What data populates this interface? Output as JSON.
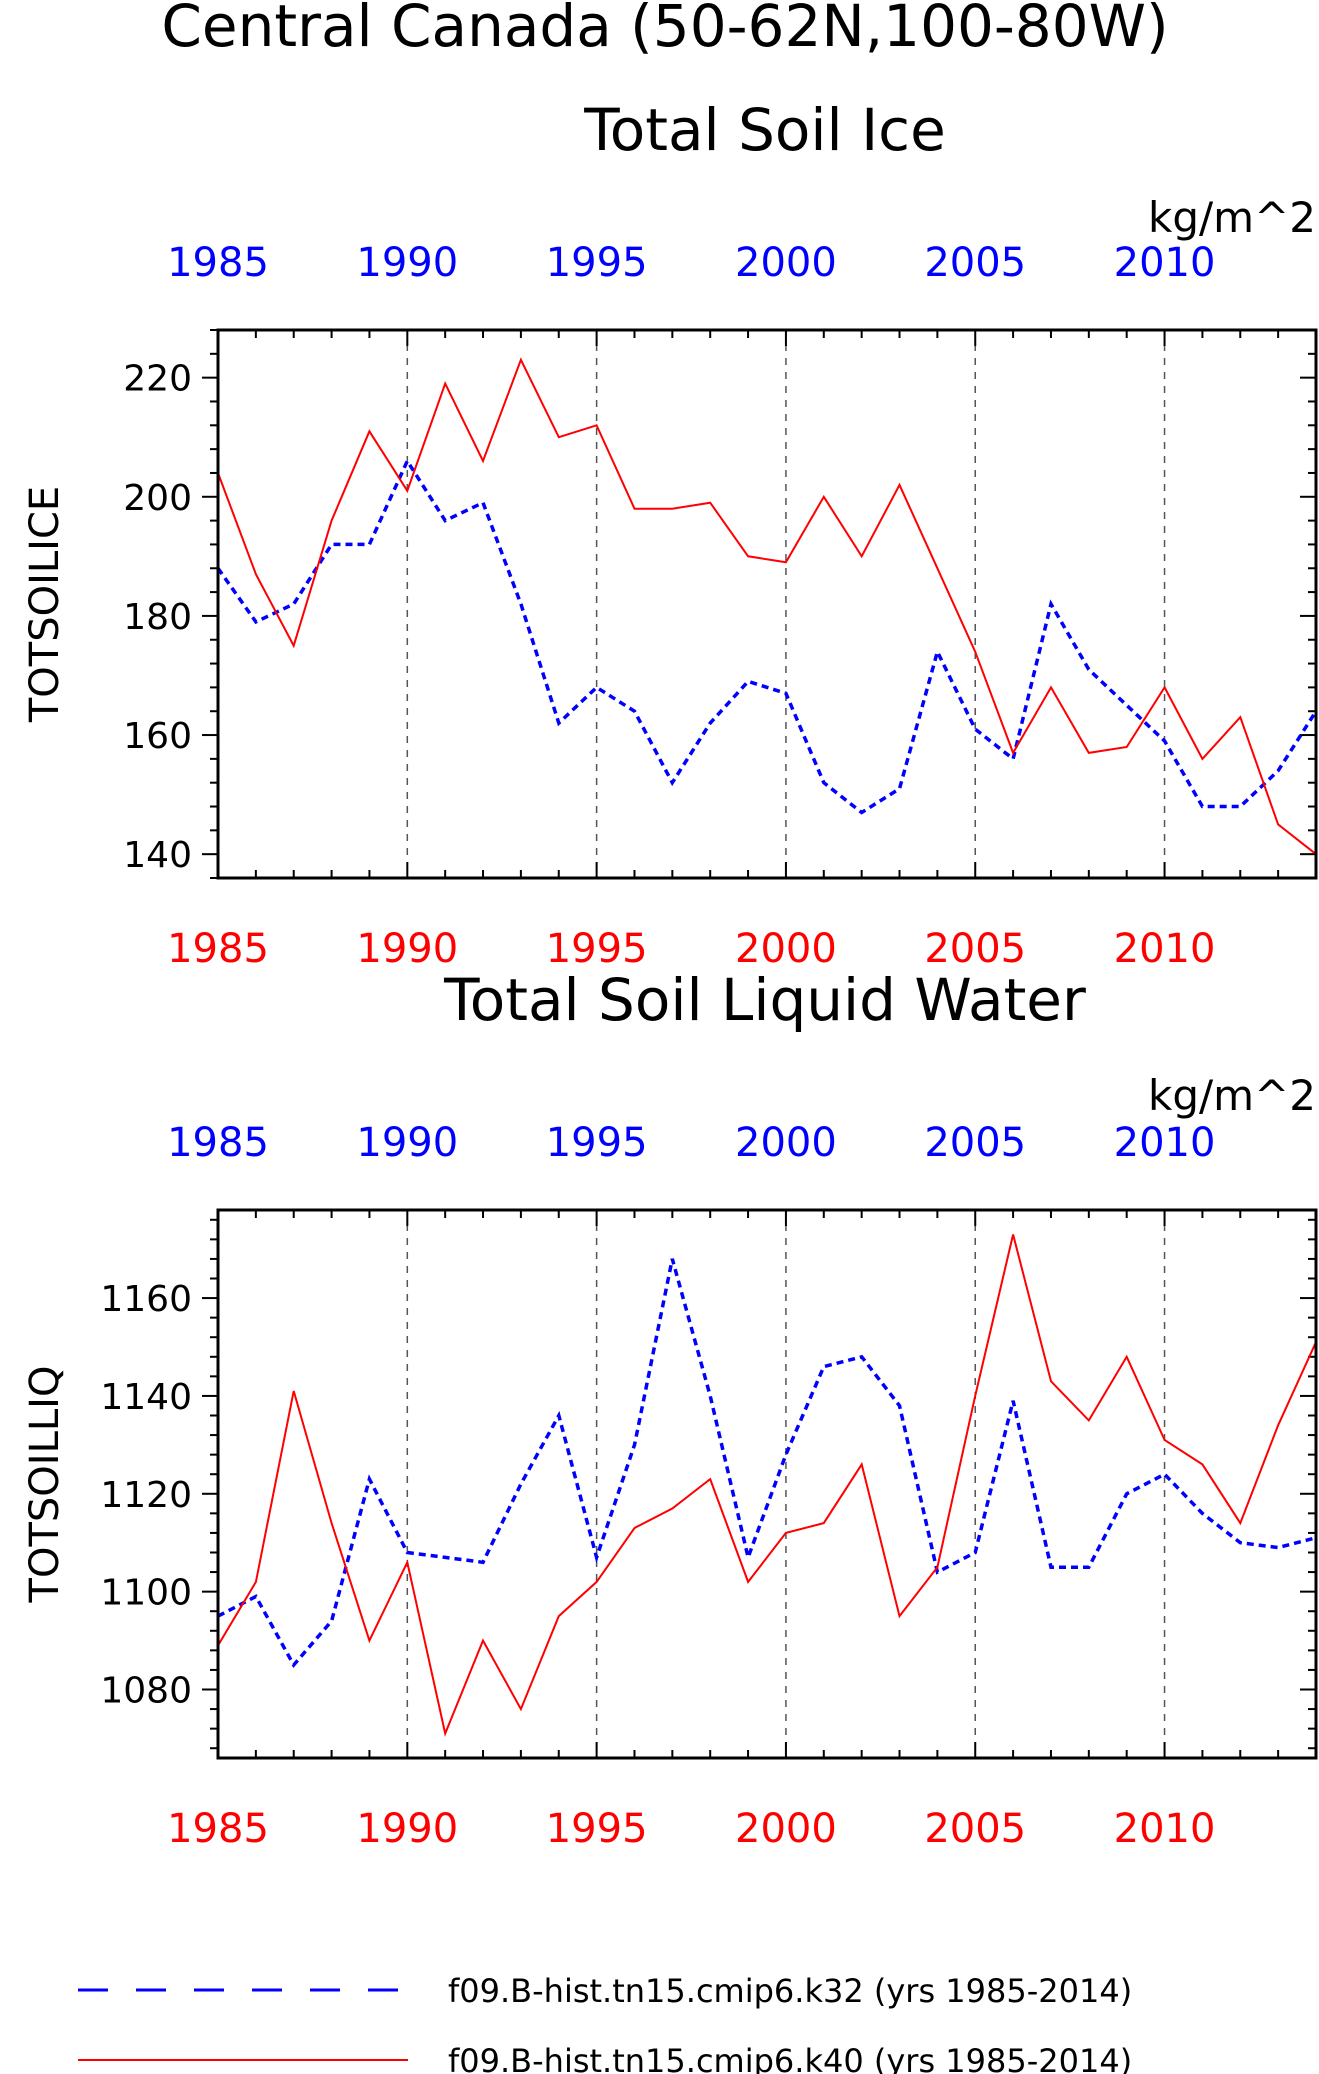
{
  "title": "Central Canada (50-62N,100-80W)",
  "colors": {
    "k32": "#0000ff",
    "k40": "#ff0000",
    "axis": "#000000"
  },
  "chart_data": [
    {
      "type": "line",
      "title": "Total Soil Ice",
      "ylabel": "TOTSOILICE",
      "units": "kg/m^2",
      "xlim": [
        1985,
        2014
      ],
      "ylim": [
        136,
        228
      ],
      "yticks": [
        140,
        160,
        180,
        200,
        220
      ],
      "xticks": [
        1985,
        1990,
        1995,
        2000,
        2005,
        2010
      ],
      "grid": "vertical dashed lines",
      "series": [
        {
          "name": "f09.B-hist.tn15.cmip6.k32 (yrs 1985-2014)",
          "x_axis": "top",
          "x": [
            1985,
            1986,
            1987,
            1988,
            1989,
            1990,
            1991,
            1992,
            1993,
            1994,
            1995,
            1996,
            1997,
            1998,
            1999,
            2000,
            2001,
            2002,
            2003,
            2004,
            2005,
            2006,
            2007,
            2008,
            2009,
            2010,
            2011,
            2012,
            2013,
            2014
          ],
          "values": [
            188,
            179,
            182,
            192,
            192,
            206,
            196,
            199,
            182,
            162,
            168,
            164,
            152,
            162,
            169,
            167,
            152,
            147,
            151,
            174,
            161,
            156,
            182,
            171,
            165,
            159,
            148,
            148,
            154,
            164
          ]
        },
        {
          "name": "f09.B-hist.tn15.cmip6.k40 (yrs 1985-2014)",
          "x_axis": "bottom",
          "x": [
            1985,
            1986,
            1987,
            1988,
            1989,
            1990,
            1991,
            1992,
            1993,
            1994,
            1995,
            1996,
            1997,
            1998,
            1999,
            2000,
            2001,
            2002,
            2003,
            2004,
            2005,
            2006,
            2007,
            2008,
            2009,
            2010,
            2011,
            2012,
            2013,
            2014
          ],
          "values": [
            204,
            187,
            175,
            196,
            211,
            201,
            219,
            206,
            223,
            210,
            212,
            198,
            198,
            199,
            190,
            189,
            200,
            190,
            202,
            188,
            174,
            157,
            168,
            157,
            158,
            168,
            156,
            163,
            145,
            140
          ]
        }
      ]
    },
    {
      "type": "line",
      "title": "Total Soil Liquid Water",
      "ylabel": "TOTSOILLIQ",
      "units": "kg/m^2",
      "xlim": [
        1985,
        2014
      ],
      "ylim": [
        1066,
        1178
      ],
      "yticks": [
        1080,
        1100,
        1120,
        1140,
        1160
      ],
      "xticks": [
        1985,
        1990,
        1995,
        2000,
        2005,
        2010
      ],
      "grid": "vertical dashed lines",
      "series": [
        {
          "name": "f09.B-hist.tn15.cmip6.k32 (yrs 1985-2014)",
          "x_axis": "top",
          "x": [
            1985,
            1986,
            1987,
            1988,
            1989,
            1990,
            1991,
            1992,
            1993,
            1994,
            1995,
            1996,
            1997,
            1998,
            1999,
            2000,
            2001,
            2002,
            2003,
            2004,
            2005,
            2006,
            2007,
            2008,
            2009,
            2010,
            2011,
            2012,
            2013,
            2014
          ],
          "values": [
            1095,
            1099,
            1085,
            1094,
            1123,
            1108,
            1107,
            1106,
            1122,
            1136,
            1107,
            1130,
            1168,
            1140,
            1107,
            1128,
            1146,
            1148,
            1138,
            1104,
            1108,
            1139,
            1105,
            1105,
            1120,
            1124,
            1116,
            1110,
            1109,
            1111
          ]
        },
        {
          "name": "f09.B-hist.tn15.cmip6.k40 (yrs 1985-2014)",
          "x_axis": "bottom",
          "x": [
            1985,
            1986,
            1987,
            1988,
            1989,
            1990,
            1991,
            1992,
            1993,
            1994,
            1995,
            1996,
            1997,
            1998,
            1999,
            2000,
            2001,
            2002,
            2003,
            2004,
            2005,
            2006,
            2007,
            2008,
            2009,
            2010,
            2011,
            2012,
            2013,
            2014
          ],
          "values": [
            1089,
            1102,
            1141,
            1114,
            1090,
            1106,
            1071,
            1090,
            1076,
            1095,
            1102,
            1113,
            1117,
            1123,
            1102,
            1112,
            1114,
            1126,
            1095,
            1105,
            1140,
            1173,
            1143,
            1135,
            1148,
            1131,
            1126,
            1114,
            1134,
            1151
          ]
        }
      ]
    }
  ],
  "legend": [
    {
      "label": "f09.B-hist.tn15.cmip6.k32 (yrs 1985-2014)",
      "color": "#0000ff",
      "style": "dashed"
    },
    {
      "label": "f09.B-hist.tn15.cmip6.k40 (yrs 1985-2014)",
      "color": "#ff0000",
      "style": "solid"
    }
  ]
}
